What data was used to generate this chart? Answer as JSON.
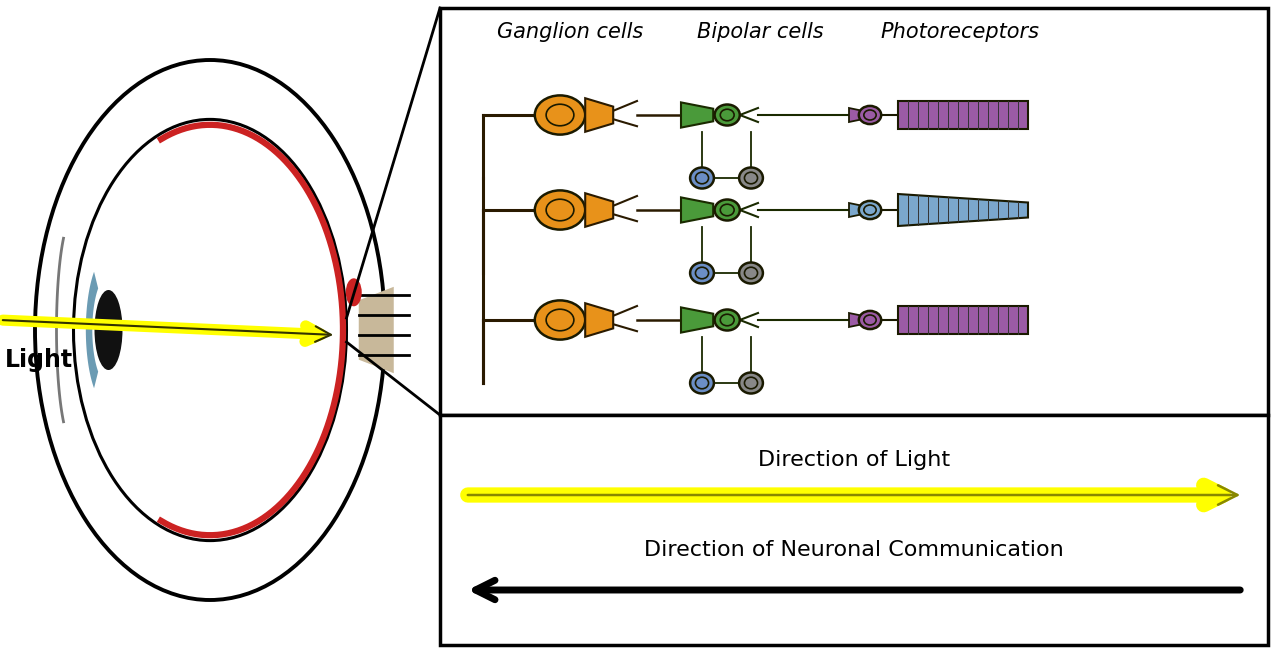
{
  "bg_color": "#ffffff",
  "orange_color": "#E8921A",
  "green_color": "#4A9A3A",
  "blue_color": "#6B8EC6",
  "gray_color": "#888888",
  "purple_color": "#9B5BA5",
  "blue_receptor_color": "#7BA7CC",
  "retina_red_color": "#CC2222",
  "optic_nerve_color": "#C8B89A",
  "light_label": "Light",
  "direction_light_label": "Direction of Light",
  "direction_neuronal_label": "Direction of Neuronal Communication",
  "ganglion_label": "Ganglion cells",
  "bipolar_label": "Bipolar cells",
  "photoreceptor_label": "Photoreceptors"
}
